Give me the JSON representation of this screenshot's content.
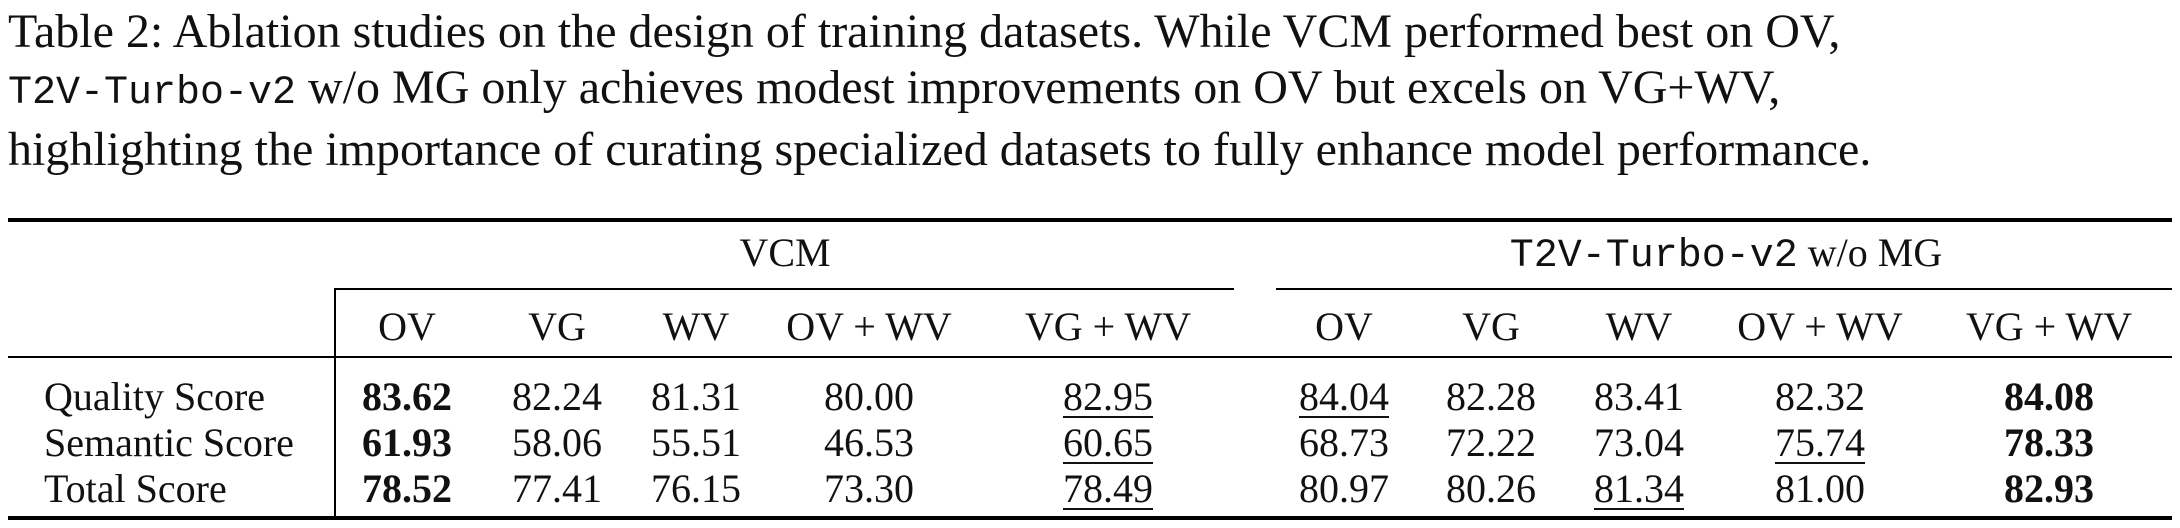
{
  "caption": {
    "line1": "Table 2:  Ablation studies on the design of training datasets.  While VCM performed best on OV,",
    "line2_mono": "T2V-Turbo-v2",
    "line2_rest": " w/o MG only achieves modest improvements on OV but excels on VG+WV,",
    "line3": "highlighting the importance of curating specialized datasets to fully enhance model performance."
  },
  "table": {
    "group_vcm": "VCM",
    "group_t2v_mono": "T2V-Turbo-v2",
    "group_t2v_rest": " w/o MG",
    "columns": [
      "OV",
      "VG",
      "WV",
      "OV + WV",
      "VG + WV",
      "OV",
      "VG",
      "WV",
      "OV + WV",
      "VG + WV"
    ],
    "rows": [
      {
        "label": "Quality Score",
        "cells": [
          "83.62",
          "82.24",
          "81.31",
          "80.00",
          "82.95",
          "84.04",
          "82.28",
          "83.41",
          "82.32",
          "84.08"
        ],
        "style": [
          "bold",
          "",
          "",
          "",
          "ul",
          "ul",
          "",
          "",
          "",
          "bold"
        ]
      },
      {
        "label": "Semantic Score",
        "cells": [
          "61.93",
          "58.06",
          "55.51",
          "46.53",
          "60.65",
          "68.73",
          "72.22",
          "73.04",
          "75.74",
          "78.33"
        ],
        "style": [
          "bold",
          "",
          "",
          "",
          "ul",
          "",
          "",
          "",
          "ul",
          "bold"
        ]
      },
      {
        "label": "Total Score",
        "cells": [
          "78.52",
          "77.41",
          "76.15",
          "73.30",
          "78.49",
          "80.97",
          "80.26",
          "81.34",
          "81.00",
          "82.93"
        ],
        "style": [
          "bold",
          "",
          "",
          "",
          "ul",
          "",
          "",
          "ul",
          "",
          "bold"
        ]
      }
    ]
  }
}
